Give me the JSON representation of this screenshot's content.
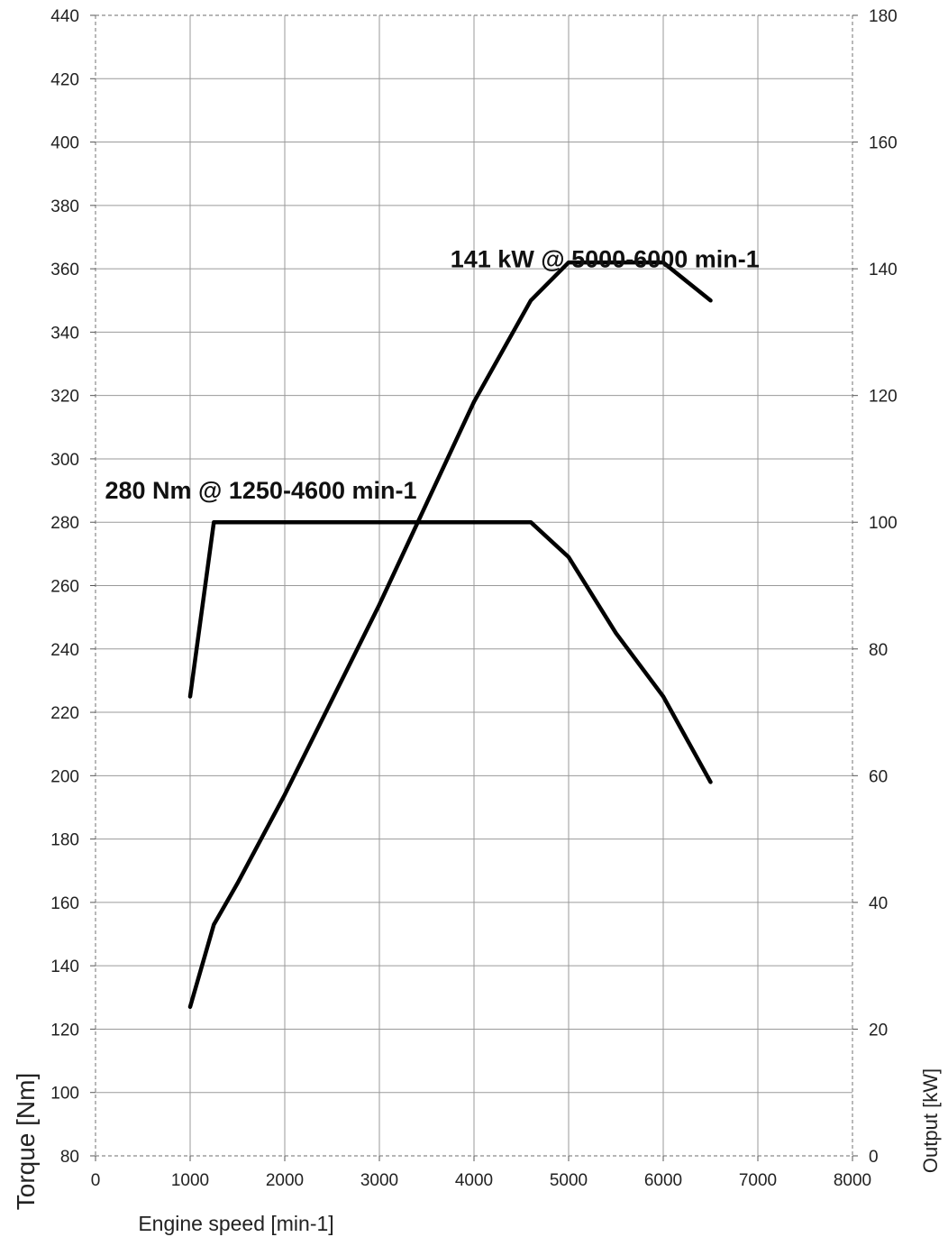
{
  "chart_data": {
    "type": "line",
    "title": "",
    "xlabel": "Engine speed [min-1]",
    "ylabel": "Torque [Nm]",
    "y2label": "Output [kW]",
    "xlim": [
      0,
      8000
    ],
    "ylim": [
      80,
      440
    ],
    "y2lim": [
      0,
      180
    ],
    "grid": true,
    "x_ticks": [
      "0",
      "1000",
      "2000",
      "3000",
      "4000",
      "5000",
      "6000",
      "7000",
      "8000"
    ],
    "y_ticks": [
      "80",
      "100",
      "120",
      "140",
      "160",
      "180",
      "200",
      "220",
      "240",
      "260",
      "280",
      "300",
      "320",
      "340",
      "360",
      "380",
      "400",
      "420",
      "440"
    ],
    "y2_ticks": [
      "0",
      "20",
      "40",
      "60",
      "80",
      "100",
      "120",
      "140",
      "160",
      "180"
    ],
    "series": [
      {
        "axis": "left",
        "color": "#000000",
        "x": [
          1000,
          1250,
          4600,
          5000,
          5500,
          6000,
          6500
        ],
        "y": [
          225,
          280,
          280,
          269,
          245,
          225,
          198
        ]
      },
      {
        "axis": "right",
        "color": "#000000",
        "x": [
          1000,
          1250,
          1500,
          2000,
          2500,
          3000,
          3500,
          4000,
          4600,
          5000,
          6000,
          6500
        ],
        "y": [
          23.5,
          36.5,
          43,
          57,
          72,
          87,
          103,
          119,
          135,
          141,
          141,
          135
        ]
      }
    ],
    "annotations": [
      {
        "text": "141 kW @ 5000-6000 min-1",
        "x": 3750,
        "y": 363,
        "axis": "left"
      },
      {
        "text": "280 Nm @ 1250-4600 min-1",
        "x": 100,
        "y": 290,
        "axis": "left"
      }
    ]
  }
}
